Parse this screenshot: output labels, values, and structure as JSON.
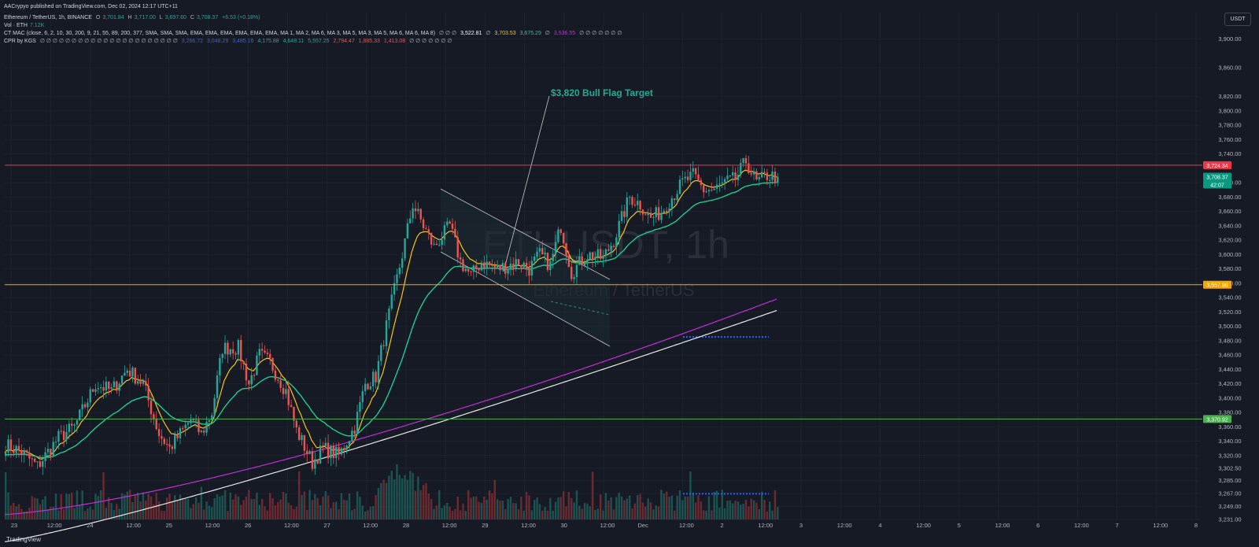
{
  "header": {
    "published": "AACrypyo published on TradingView.com, Dec 02, 2024 12:17 UTC+11",
    "symbol": "Ethereum / TetherUS, 1h, BINANCE",
    "ohlc": {
      "o_label": "O",
      "o": "3,701.84",
      "h_label": "H",
      "h": "3,717.00",
      "l_label": "L",
      "l": "3,697.60",
      "c_label": "C",
      "c": "3,708.37",
      "chg": "+6.53 (+0.18%)"
    },
    "vol": {
      "label": "Vol · ETH",
      "value": "7.12K"
    },
    "mac": {
      "label": "CT MAC (close, 6, 2, 10, 30, 200, 9, 21, 55, 89, 200, 377, SMA, SMA, SMA, EMA, EMA, EMA, EMA, EMA, EMA, MA 1, MA 2, MA 6, MA 3, MA 5, MA 3, MA 5, MA 6, MA 6, MA 8)",
      "empties1": "∅ ∅ ∅",
      "v1": "3,522.81",
      "empty2": "∅",
      "v2": "3,703.53",
      "v3": "3,675.29",
      "empty3": "∅",
      "v4": "3,536.55",
      "empties4": "∅ ∅ ∅ ∅ ∅ ∅ ∅"
    },
    "cpr": {
      "label": "CPR by KGS",
      "empties": "∅ ∅ ∅ ∅ ∅ ∅ ∅ ∅ ∅ ∅ ∅ ∅ ∅ ∅ ∅ ∅ ∅ ∅ ∅ ∅ ∅ ∅",
      "v1": "3,266.72",
      "v2": "3,048.29",
      "v3": "3,485.16",
      "v4": "4,175.88",
      "v5": "4,648.11",
      "v6": "5,557.25",
      "v7": "2,794.47",
      "v8": "1,885.33",
      "v9": "1,413.08",
      "empties_end": "∅ ∅ ∅ ∅ ∅ ∅ ∅"
    }
  },
  "currency_button": "USDT",
  "watermark": {
    "main": "ETHUSDT, 1h",
    "sub": "Ethereum / TetherUS"
  },
  "annotation": "$3,820 Bull Flag Target",
  "footer_brand": "TradingView",
  "colors": {
    "bg": "#161a25",
    "up": "#26a69a",
    "down": "#ef5350",
    "ema_fast": "#f5c518",
    "ema_mid": "#1fcc8f",
    "ma_magenta": "#c22fd6",
    "ma_white": "#e8e8e8",
    "line_red": "#f23645",
    "line_orange": "#f7a600",
    "line_green": "#4caf50",
    "cpr_blue": "#2962ff"
  },
  "price_badges": [
    {
      "text": "3,724.34",
      "price": 3724.34,
      "bg": "#f23645"
    },
    {
      "text": "3,708.37",
      "price": 3708.37,
      "bg": "#089981"
    },
    {
      "text": "42:07",
      "price": 3697.5,
      "bg": "#089981"
    },
    {
      "text": "3,557.96",
      "price": 3557.96,
      "bg": "#f7a600"
    },
    {
      "text": "3,370.92",
      "price": 3370.92,
      "bg": "#4caf50"
    }
  ],
  "chart_data": {
    "type": "candlestick",
    "x_labels": [
      "23",
      "12:00",
      "24",
      "12:00",
      "25",
      "12:00",
      "26",
      "12:00",
      "27",
      "12:00",
      "28",
      "12:00",
      "29",
      "12:00",
      "30",
      "12:00",
      "Dec",
      "12:00",
      "2",
      "12:00",
      "3",
      "12:00",
      "4",
      "12:00",
      "5",
      "12:00",
      "6",
      "12:00",
      "7",
      "12:00",
      "8"
    ],
    "y_ticks": [
      "3,900.00",
      "3,860.00",
      "3,820.00",
      "3,800.00",
      "3,780.00",
      "3,760.00",
      "3,740.00",
      "3,700.00",
      "3,680.00",
      "3,660.00",
      "3,640.00",
      "3,620.00",
      "3,600.00",
      "3,580.00",
      "3,560.00",
      "3,540.00",
      "3,520.00",
      "3,500.00",
      "3,480.00",
      "3,460.00",
      "3,440.00",
      "3,420.00",
      "3,400.00",
      "3,380.00",
      "3,360.00",
      "3,340.00",
      "3,320.00",
      "3,302.50",
      "3,285.00",
      "3,267.00",
      "3,249.00",
      "3,231.00"
    ],
    "close_anchors": [
      [
        0,
        3335
      ],
      [
        6,
        3325
      ],
      [
        12,
        3305
      ],
      [
        20,
        3345
      ],
      [
        26,
        3360
      ],
      [
        30,
        3390
      ],
      [
        34,
        3420
      ],
      [
        40,
        3410
      ],
      [
        46,
        3440
      ],
      [
        52,
        3420
      ],
      [
        58,
        3350
      ],
      [
        62,
        3330
      ],
      [
        66,
        3350
      ],
      [
        70,
        3370
      ],
      [
        74,
        3350
      ],
      [
        78,
        3380
      ],
      [
        82,
        3470
      ],
      [
        88,
        3470
      ],
      [
        92,
        3420
      ],
      [
        96,
        3460
      ],
      [
        100,
        3450
      ],
      [
        106,
        3410
      ],
      [
        110,
        3355
      ],
      [
        116,
        3310
      ],
      [
        120,
        3330
      ],
      [
        126,
        3320
      ],
      [
        132,
        3360
      ],
      [
        136,
        3420
      ],
      [
        140,
        3430
      ],
      [
        144,
        3500
      ],
      [
        150,
        3600
      ],
      [
        154,
        3670
      ],
      [
        158,
        3640
      ],
      [
        162,
        3610
      ],
      [
        168,
        3640
      ],
      [
        172,
        3590
      ],
      [
        176,
        3570
      ],
      [
        180,
        3590
      ],
      [
        186,
        3580
      ],
      [
        190,
        3585
      ],
      [
        194,
        3590
      ],
      [
        198,
        3580
      ],
      [
        202,
        3600
      ],
      [
        206,
        3585
      ],
      [
        210,
        3640
      ],
      [
        214,
        3575
      ],
      [
        220,
        3600
      ],
      [
        226,
        3595
      ],
      [
        230,
        3620
      ],
      [
        236,
        3680
      ],
      [
        240,
        3670
      ],
      [
        244,
        3650
      ],
      [
        248,
        3660
      ],
      [
        252,
        3680
      ],
      [
        256,
        3700
      ],
      [
        260,
        3710
      ],
      [
        264,
        3690
      ],
      [
        268,
        3690
      ],
      [
        272,
        3700
      ],
      [
        276,
        3705
      ],
      [
        280,
        3730
      ],
      [
        284,
        3700
      ],
      [
        288,
        3710
      ],
      [
        292,
        3708
      ]
    ],
    "horizontal_lines": [
      3724.34,
      3557.96,
      3370.92
    ],
    "price_range": [
      3231,
      3915
    ]
  }
}
